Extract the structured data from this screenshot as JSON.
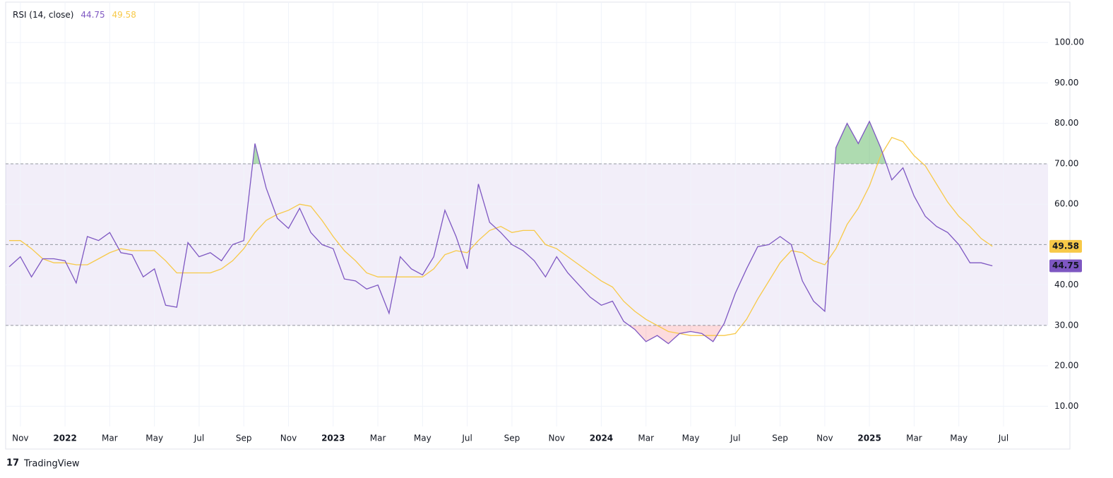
{
  "chart_data": {
    "type": "line",
    "title": "RSI (14, close)",
    "branding": "TradingView",
    "categories": [
      null,
      "Nov",
      null,
      null,
      null,
      "2022",
      null,
      null,
      null,
      "Mar",
      null,
      null,
      null,
      "May",
      null,
      null,
      null,
      "Jul",
      null,
      null,
      null,
      "Sep",
      null,
      null,
      null,
      "Nov",
      null,
      null,
      null,
      "2023",
      null,
      null,
      null,
      "Mar",
      null,
      null,
      null,
      "May",
      null,
      null,
      null,
      "Jul",
      null,
      null,
      null,
      "Sep",
      null,
      null,
      null,
      "Nov",
      null,
      null,
      null,
      "2024",
      null,
      null,
      null,
      "Mar",
      null,
      null,
      null,
      "May",
      null,
      null,
      null,
      "Jul",
      null,
      null,
      null,
      "Sep",
      null,
      null,
      null,
      "Nov",
      null,
      null,
      null,
      "2025",
      null,
      null,
      null,
      "Mar",
      null,
      null,
      null,
      "May",
      null,
      null,
      null,
      "Jul"
    ],
    "series": [
      {
        "color": "#7e57c2",
        "values": [
          44.5,
          47,
          42,
          46.5,
          46.5,
          46,
          40.5,
          52,
          51,
          53,
          48,
          47.5,
          42,
          44,
          35,
          34.5,
          50.5,
          47,
          48,
          46,
          50,
          51,
          75,
          64,
          56.5,
          54,
          59,
          53,
          50,
          49,
          41.5,
          41,
          39,
          40,
          33,
          47,
          44,
          42.5,
          47,
          58.5,
          52,
          44,
          65,
          55.5,
          53,
          50,
          48.5,
          46,
          42,
          47,
          43,
          40,
          37,
          35,
          36,
          31,
          29,
          26,
          27.5,
          25.5,
          28,
          28.5,
          28,
          26,
          30.5,
          38,
          44,
          49.5,
          50,
          52,
          50,
          41,
          36,
          33.5,
          74,
          80,
          75,
          80.5,
          74,
          66,
          69,
          62,
          57,
          54.5,
          53,
          50,
          45.5,
          45.5,
          44.75,
          null
        ]
      },
      {
        "color": "#f7c948",
        "values": [
          51,
          51,
          49,
          46.5,
          45.5,
          45.5,
          45,
          45,
          46.5,
          48,
          49,
          48.5,
          48.5,
          48.5,
          46,
          43,
          43,
          43,
          43,
          44,
          46,
          49,
          53,
          56,
          57.5,
          58.5,
          60,
          59.5,
          56,
          52,
          48.5,
          46,
          43,
          42,
          42,
          42,
          42,
          42,
          44,
          47.5,
          48.5,
          48,
          51,
          53.5,
          54.5,
          53,
          53.5,
          53.5,
          50,
          49,
          47,
          45,
          43,
          41,
          39.5,
          36,
          33.5,
          31.5,
          30,
          28.5,
          28,
          27.5,
          27.5,
          27.5,
          27.5,
          28,
          31.5,
          36.5,
          41,
          45.5,
          48.5,
          48,
          46,
          45,
          49,
          55,
          59,
          64.5,
          72,
          76.5,
          75.5,
          72,
          69.5,
          65,
          60.5,
          57,
          54.5,
          51.5,
          49.58,
          null
        ]
      }
    ],
    "bands": {
      "upper": 70,
      "middle": 50,
      "lower": 30
    },
    "ylim": [
      5,
      110
    ],
    "yticks": [
      {
        "value": 10,
        "label": "10.00"
      },
      {
        "value": 20,
        "label": "20.00"
      },
      {
        "value": 30,
        "label": "30.00"
      },
      {
        "value": 40,
        "label": "40.00"
      },
      {
        "value": 50,
        "label": "50.00"
      },
      {
        "value": 60,
        "label": "60.00"
      },
      {
        "value": 70,
        "label": "70.00"
      },
      {
        "value": 80,
        "label": "80.00"
      },
      {
        "value": 90,
        "label": "90.00"
      },
      {
        "value": 100,
        "label": "100.00"
      }
    ],
    "grid": true
  }
}
